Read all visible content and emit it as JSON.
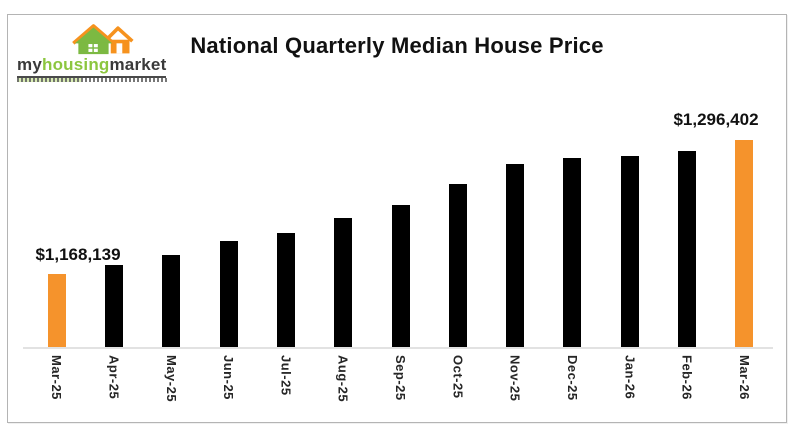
{
  "logo": {
    "text_my": "my",
    "text_housing": "housing",
    "text_market": "market",
    "wordmark_dark_color": "#3a3a3a",
    "wordmark_green_color": "#8cc63f",
    "house_green": "#7cb942",
    "house_orange": "#f6921e"
  },
  "chart_data": {
    "type": "bar",
    "title": "National Quarterly Median House Price",
    "categories": [
      "Mar-25",
      "Apr-25",
      "May-25",
      "Jun-25",
      "Jul-25",
      "Aug-25",
      "Sep-25",
      "Oct-25",
      "Nov-25",
      "Dec-25",
      "Jan-26",
      "Feb-26",
      "Mar-26"
    ],
    "values": [
      1168139,
      1176800,
      1186300,
      1199700,
      1207400,
      1221700,
      1234200,
      1254300,
      1273400,
      1279200,
      1281100,
      1285900,
      1296402
    ],
    "labeled_points": [
      {
        "category": "Mar-25",
        "label": "$1,168,139"
      },
      {
        "category": "Mar-26",
        "label": "$1,296,402"
      }
    ],
    "first_value_label": "$1,168,139",
    "last_value_label": "$1,296,402",
    "bar_color": "#000000",
    "highlight_color": "#f5932c",
    "highlight_indices": [
      0,
      12
    ],
    "ylim": [
      1098000,
      1309000
    ],
    "xlabel": "",
    "ylabel": "",
    "gridlines": false,
    "legend": "none",
    "axis_line_color": "#e2e2e2"
  }
}
